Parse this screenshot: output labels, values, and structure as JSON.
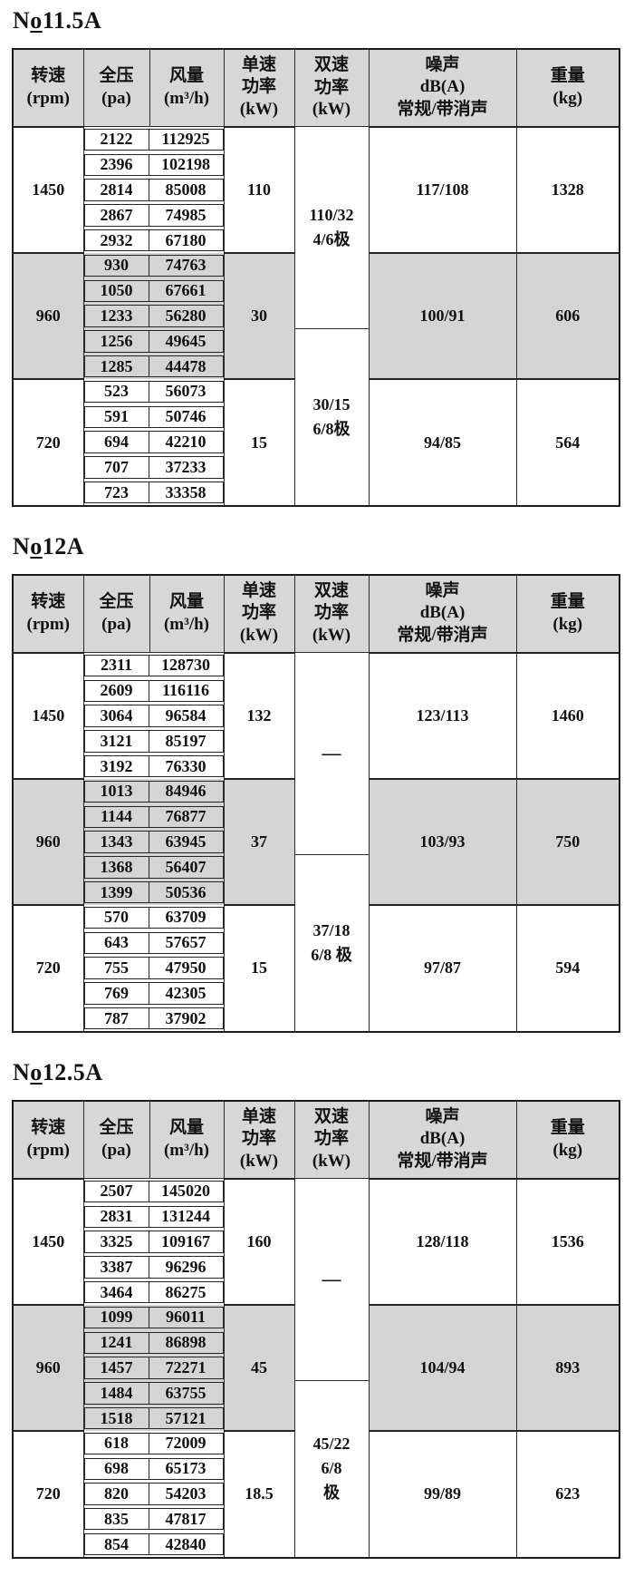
{
  "colors": {
    "page_bg": "#ffffff",
    "header_bg": "#d7d7d7",
    "band_bg": "#d4d4d4",
    "border": "#2b2b2b",
    "text": "#121212"
  },
  "header": {
    "speed": "转速\n(rpm)",
    "pressure": "全压\n(pa)",
    "volume": "风量\n(m³/h)",
    "single": "单速\n功率\n(kW)",
    "dual": "双速\n功率\n(kW)",
    "noise": "噪声\ndB(A)\n常规/带消声",
    "weight": "重量\n(kg)"
  },
  "tables": [
    {
      "title_n": "N",
      "title_o": "o",
      "title_rest": "11.5A",
      "dual": [
        {
          "text": "110/32\n4/6极",
          "span": 8
        },
        {
          "text": "30/15\n6/8极",
          "span": 7
        }
      ],
      "groups": [
        {
          "rpm": "1450",
          "shaded": false,
          "single": "110",
          "noise": "117/108",
          "weight": "1328",
          "rows": [
            [
              "2122",
              "112925"
            ],
            [
              "2396",
              "102198"
            ],
            [
              "2814",
              "85008"
            ],
            [
              "2867",
              "74985"
            ],
            [
              "2932",
              "67180"
            ]
          ]
        },
        {
          "rpm": "960",
          "shaded": true,
          "single": "30",
          "noise": "100/91",
          "weight": "606",
          "rows": [
            [
              "930",
              "74763"
            ],
            [
              "1050",
              "67661"
            ],
            [
              "1233",
              "56280"
            ],
            [
              "1256",
              "49645"
            ],
            [
              "1285",
              "44478"
            ]
          ]
        },
        {
          "rpm": "720",
          "shaded": false,
          "single": "15",
          "noise": "94/85",
          "weight": "564",
          "rows": [
            [
              "523",
              "56073"
            ],
            [
              "591",
              "50746"
            ],
            [
              "694",
              "42210"
            ],
            [
              "707",
              "37233"
            ],
            [
              "723",
              "33358"
            ]
          ]
        }
      ]
    },
    {
      "title_n": "N",
      "title_o": "o",
      "title_rest": "12A",
      "dual": [
        {
          "text": "—",
          "span": 8
        },
        {
          "text": "37/18\n6/8 极",
          "span": 7
        }
      ],
      "groups": [
        {
          "rpm": "1450",
          "shaded": false,
          "single": "132",
          "noise": "123/113",
          "weight": "1460",
          "rows": [
            [
              "2311",
              "128730"
            ],
            [
              "2609",
              "116116"
            ],
            [
              "3064",
              "96584"
            ],
            [
              "3121",
              "85197"
            ],
            [
              "3192",
              "76330"
            ]
          ]
        },
        {
          "rpm": "960",
          "shaded": true,
          "single": "37",
          "noise": "103/93",
          "weight": "750",
          "rows": [
            [
              "1013",
              "84946"
            ],
            [
              "1144",
              "76877"
            ],
            [
              "1343",
              "63945"
            ],
            [
              "1368",
              "56407"
            ],
            [
              "1399",
              "50536"
            ]
          ]
        },
        {
          "rpm": "720",
          "shaded": false,
          "single": "15",
          "noise": "97/87",
          "weight": "594",
          "rows": [
            [
              "570",
              "63709"
            ],
            [
              "643",
              "57657"
            ],
            [
              "755",
              "47950"
            ],
            [
              "769",
              "42305"
            ],
            [
              "787",
              "37902"
            ]
          ]
        }
      ]
    },
    {
      "title_n": "N",
      "title_o": "o",
      "title_rest": "12.5A",
      "dual": [
        {
          "text": "—",
          "span": 8
        },
        {
          "text": "45/22\n6/8\n极",
          "span": 7
        }
      ],
      "groups": [
        {
          "rpm": "1450",
          "shaded": false,
          "single": "160",
          "noise": "128/118",
          "weight": "1536",
          "rows": [
            [
              "2507",
              "145020"
            ],
            [
              "2831",
              "131244"
            ],
            [
              "3325",
              "109167"
            ],
            [
              "3387",
              "96296"
            ],
            [
              "3464",
              "86275"
            ]
          ]
        },
        {
          "rpm": "960",
          "shaded": true,
          "single": "45",
          "noise": "104/94",
          "weight": "893",
          "rows": [
            [
              "1099",
              "96011"
            ],
            [
              "1241",
              "86898"
            ],
            [
              "1457",
              "72271"
            ],
            [
              "1484",
              "63755"
            ],
            [
              "1518",
              "57121"
            ]
          ]
        },
        {
          "rpm": "720",
          "shaded": false,
          "single": "18.5",
          "noise": "99/89",
          "weight": "623",
          "rows": [
            [
              "618",
              "72009"
            ],
            [
              "698",
              "65173"
            ],
            [
              "820",
              "54203"
            ],
            [
              "835",
              "47817"
            ],
            [
              "854",
              "42840"
            ]
          ]
        }
      ]
    }
  ]
}
